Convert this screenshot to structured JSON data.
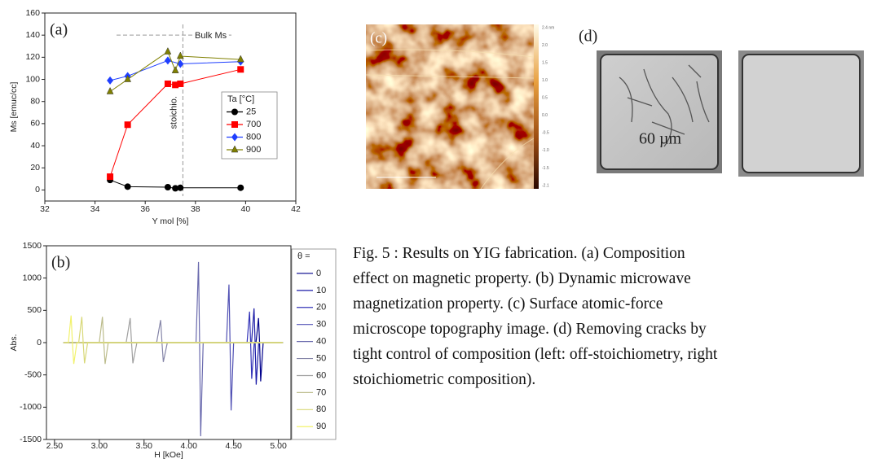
{
  "chart_data": [
    {
      "type": "line",
      "panel_label": "(a)",
      "x_label": "Y mol [%]",
      "y_label": "Ms [emuc/cc]",
      "xlim": [
        32,
        42
      ],
      "xticks": [
        32,
        34,
        36,
        38,
        40,
        42
      ],
      "ylim": [
        -10,
        160
      ],
      "yticks": [
        0,
        20,
        40,
        60,
        80,
        100,
        120,
        140,
        160
      ],
      "legend": "right",
      "legend_title": "Ta [°C]",
      "series": [
        {
          "name": "25",
          "color": "#000000",
          "marker": "circle",
          "x": [
            34.6,
            35.3,
            36.9,
            37.2,
            37.4,
            39.8
          ],
          "values": [
            9,
            3,
            2.5,
            1.5,
            2,
            2
          ]
        },
        {
          "name": "700",
          "color": "#ff0000",
          "marker": "square",
          "x": [
            34.6,
            35.3,
            36.9,
            37.2,
            37.4,
            39.8
          ],
          "values": [
            12,
            59,
            96,
            95,
            96,
            109
          ]
        },
        {
          "name": "800",
          "color": "#1f3fff",
          "marker": "diamond",
          "x": [
            34.6,
            35.3,
            36.9,
            37.4,
            39.8
          ],
          "values": [
            99,
            103,
            117,
            114,
            116
          ]
        },
        {
          "name": "900",
          "color": "#808000",
          "marker": "triangle",
          "x": [
            34.6,
            35.3,
            36.9,
            37.2,
            37.4,
            39.8
          ],
          "values": [
            89,
            100,
            125,
            108,
            121,
            118
          ]
        }
      ],
      "reference_lines": [
        {
          "orientation": "horizontal",
          "value": 140,
          "label": "Bulk Ms"
        },
        {
          "orientation": "vertical",
          "value": 37.5,
          "label": "stoichio."
        }
      ]
    },
    {
      "type": "line",
      "panel_label": "(b)",
      "x_label": "H [kOe]",
      "y_label": "Abs.",
      "xlim": [
        2.41,
        5.14
      ],
      "xticks": [
        {
          "value": 2.5,
          "label": "2.50"
        },
        {
          "value": 3,
          "label": "3.00"
        },
        {
          "value": 3.5,
          "label": "3.50"
        },
        {
          "value": 4,
          "label": "4.00"
        },
        {
          "value": 4.5,
          "label": "4.50"
        },
        {
          "value": 5,
          "label": "5.00"
        }
      ],
      "ylim": [
        -1500,
        1500
      ],
      "yticks": [
        -1500,
        -1000,
        -500,
        0,
        500,
        1000,
        1500
      ],
      "legend": "outside-right",
      "legend_title": "θ =",
      "series": [
        {
          "name": "0",
          "color": "#00008b",
          "x": [
            2.6,
            4.75,
            4.778,
            4.79,
            4.802,
            4.83,
            5.05
          ],
          "values": [
            0,
            0,
            380,
            0,
            -600,
            0,
            0
          ]
        },
        {
          "name": "10",
          "color": "#1c1ca8",
          "x": [
            2.6,
            4.7,
            4.728,
            4.74,
            4.752,
            4.78,
            5.05
          ],
          "values": [
            0,
            0,
            530,
            0,
            -650,
            0,
            0
          ]
        },
        {
          "name": "20",
          "color": "#3434b8",
          "x": [
            2.6,
            4.65,
            4.678,
            4.69,
            4.702,
            4.73,
            5.05
          ],
          "values": [
            0,
            0,
            480,
            0,
            -560,
            0,
            0
          ]
        },
        {
          "name": "30",
          "color": "#5050b4",
          "x": [
            2.6,
            4.42,
            4.448,
            4.46,
            4.472,
            4.5,
            5.05
          ],
          "values": [
            0,
            0,
            900,
            0,
            -1050,
            0,
            0
          ]
        },
        {
          "name": "40",
          "color": "#6a6aae",
          "x": [
            2.6,
            4.08,
            4.108,
            4.12,
            4.132,
            4.16,
            5.05
          ],
          "values": [
            0,
            0,
            1250,
            0,
            -1450,
            0,
            0
          ]
        },
        {
          "name": "50",
          "color": "#8686a8",
          "x": [
            2.6,
            3.64,
            3.685,
            3.7,
            3.715,
            3.76,
            5.05
          ],
          "values": [
            0,
            0,
            350,
            0,
            -300,
            0,
            0
          ]
        },
        {
          "name": "60",
          "color": "#a0a0a0",
          "x": [
            2.6,
            3.3,
            3.345,
            3.36,
            3.375,
            3.42,
            5.05
          ],
          "values": [
            0,
            0,
            380,
            0,
            -320,
            0,
            0
          ]
        },
        {
          "name": "70",
          "color": "#bcbc8c",
          "x": [
            2.6,
            3.0,
            3.035,
            3.05,
            3.065,
            3.1,
            5.05
          ],
          "values": [
            0,
            0,
            400,
            0,
            -330,
            0,
            0
          ]
        },
        {
          "name": "80",
          "color": "#d8d878",
          "x": [
            2.6,
            2.77,
            2.805,
            2.82,
            2.835,
            2.87,
            5.05
          ],
          "values": [
            0,
            0,
            400,
            0,
            -320,
            0,
            0
          ]
        },
        {
          "name": "90",
          "color": "#f2f26c",
          "x": [
            2.6,
            2.655,
            2.685,
            2.7,
            2.715,
            2.75,
            5.05
          ],
          "values": [
            0,
            0,
            420,
            0,
            -330,
            0,
            0
          ]
        }
      ]
    }
  ],
  "panel_c": {
    "label": "(c)",
    "colorbar_ticks": [
      "2.4 nm",
      "2.0",
      "1.5",
      "1.0",
      "0.5",
      "0.0",
      "-0.5",
      "-1.0",
      "-1.5",
      "-2.1"
    ]
  },
  "panel_d": {
    "label": "(d)",
    "scale_label": "60 µm"
  },
  "caption": {
    "lines": [
      "Fig. 5 : Results on YIG fabrication.  (a) Composition",
      "effect on magnetic property. (b) Dynamic microwave",
      "magnetization property. (c) Surface atomic-force",
      "microscope topography image. (d) Removing cracks by",
      "tight control of composition (left: off-stoichiometry, right",
      "stoichiometric composition)."
    ]
  }
}
